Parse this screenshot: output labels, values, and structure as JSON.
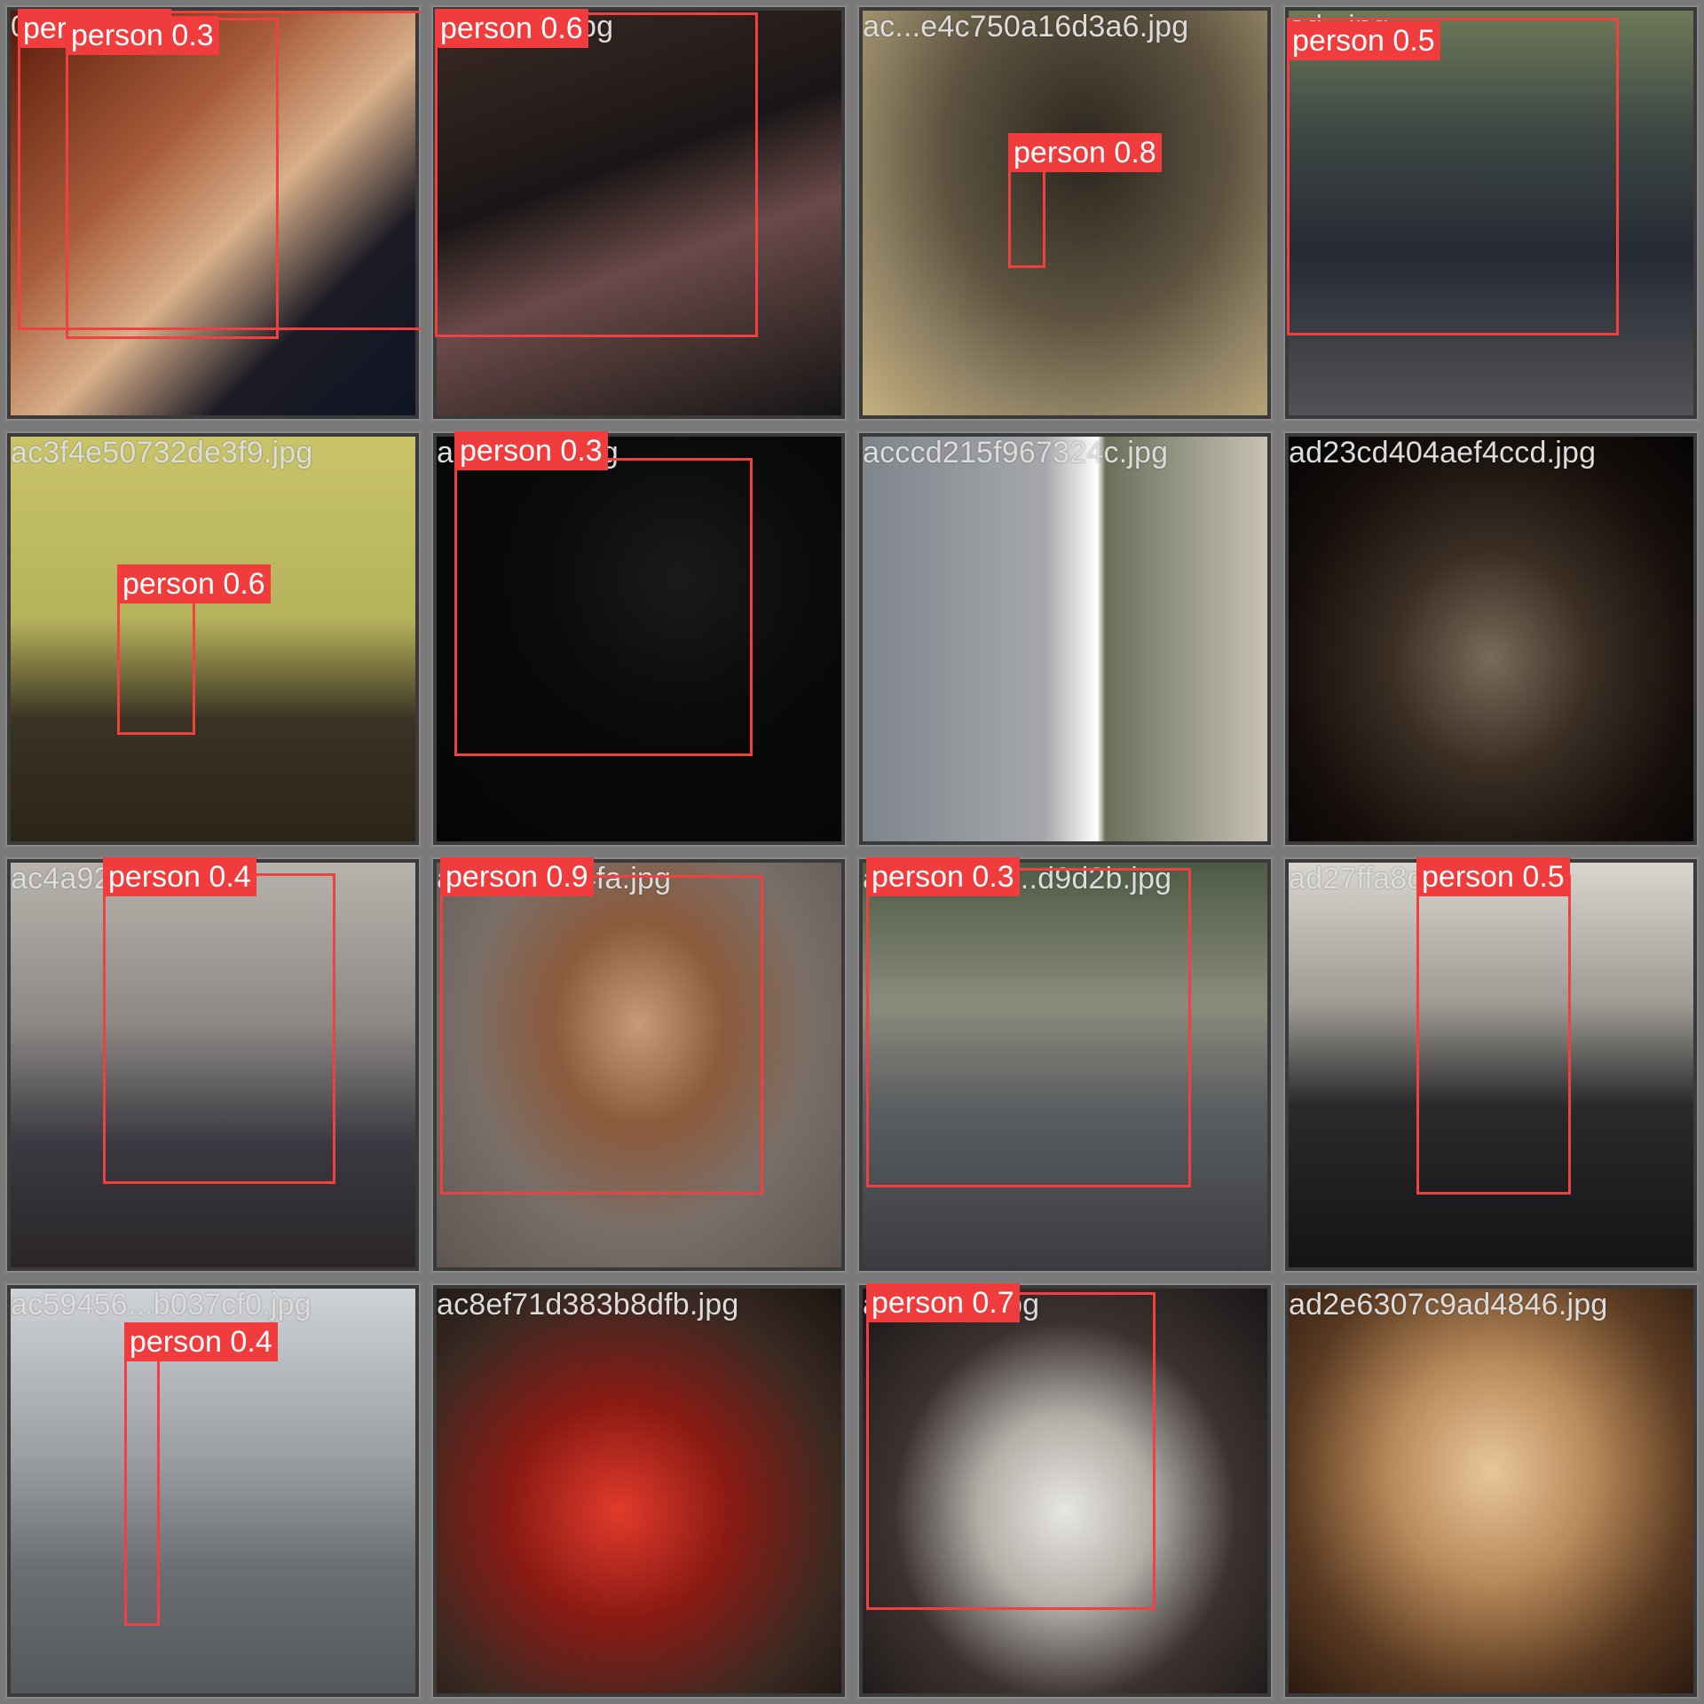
{
  "title": "",
  "colors": {
    "box": "#f04040",
    "label_bg": "#f03c3c",
    "label_text": "#ffffff",
    "filename_text": "#dcdcdc",
    "frame": "#7a7a7a"
  },
  "tiles": [
    {
      "file": "0pers...5f0.jpg",
      "detections": [
        {
          "label": "person",
          "conf": "0.3"
        },
        {
          "label": "person",
          "conf": "0.3"
        }
      ]
    },
    {
      "file": "...d869d6.jpg",
      "detections": [
        {
          "label": "person",
          "conf": "0.6"
        }
      ]
    },
    {
      "file": "ac...e4c750a16d3a6.jpg",
      "detections": [
        {
          "label": "person",
          "conf": "0.8"
        }
      ]
    },
    {
      "file": "ad...jpg",
      "detections": [
        {
          "label": "person",
          "conf": "0.5"
        }
      ]
    },
    {
      "file": "ac3f4e50732de3f9.jpg",
      "detections": [
        {
          "label": "person",
          "conf": "0.6"
        }
      ]
    },
    {
      "file": "ac...c9f6a.jpg",
      "detections": [
        {
          "label": "person",
          "conf": "0.3"
        }
      ]
    },
    {
      "file": "acccd215f967324c.jpg",
      "detections": []
    },
    {
      "file": "ad23cd404aef4ccd.jpg",
      "detections": []
    },
    {
      "file": "ac4a925...bda.jpg",
      "detections": [
        {
          "label": "person",
          "conf": "0.4"
        }
      ]
    },
    {
      "file": "ac7...bebd4fa.jpg",
      "detections": [
        {
          "label": "person",
          "conf": "0.9"
        }
      ]
    },
    {
      "file": "accdde554...d9d2b.jpg",
      "detections": [
        {
          "label": "person",
          "conf": "0.3"
        }
      ]
    },
    {
      "file": "ad27ffa8d1...jpg",
      "detections": [
        {
          "label": "person",
          "conf": "0.5"
        }
      ]
    },
    {
      "file": "ac59456...b037cf0.jpg",
      "detections": [
        {
          "label": "person",
          "conf": "0.4"
        }
      ]
    },
    {
      "file": "ac8ef71d383b8dfb.jpg",
      "detections": []
    },
    {
      "file": "ad08a...4.jpg",
      "detections": [
        {
          "label": "person",
          "conf": "0.7"
        }
      ]
    },
    {
      "file": "ad2e6307c9ad4846.jpg",
      "detections": []
    }
  ]
}
